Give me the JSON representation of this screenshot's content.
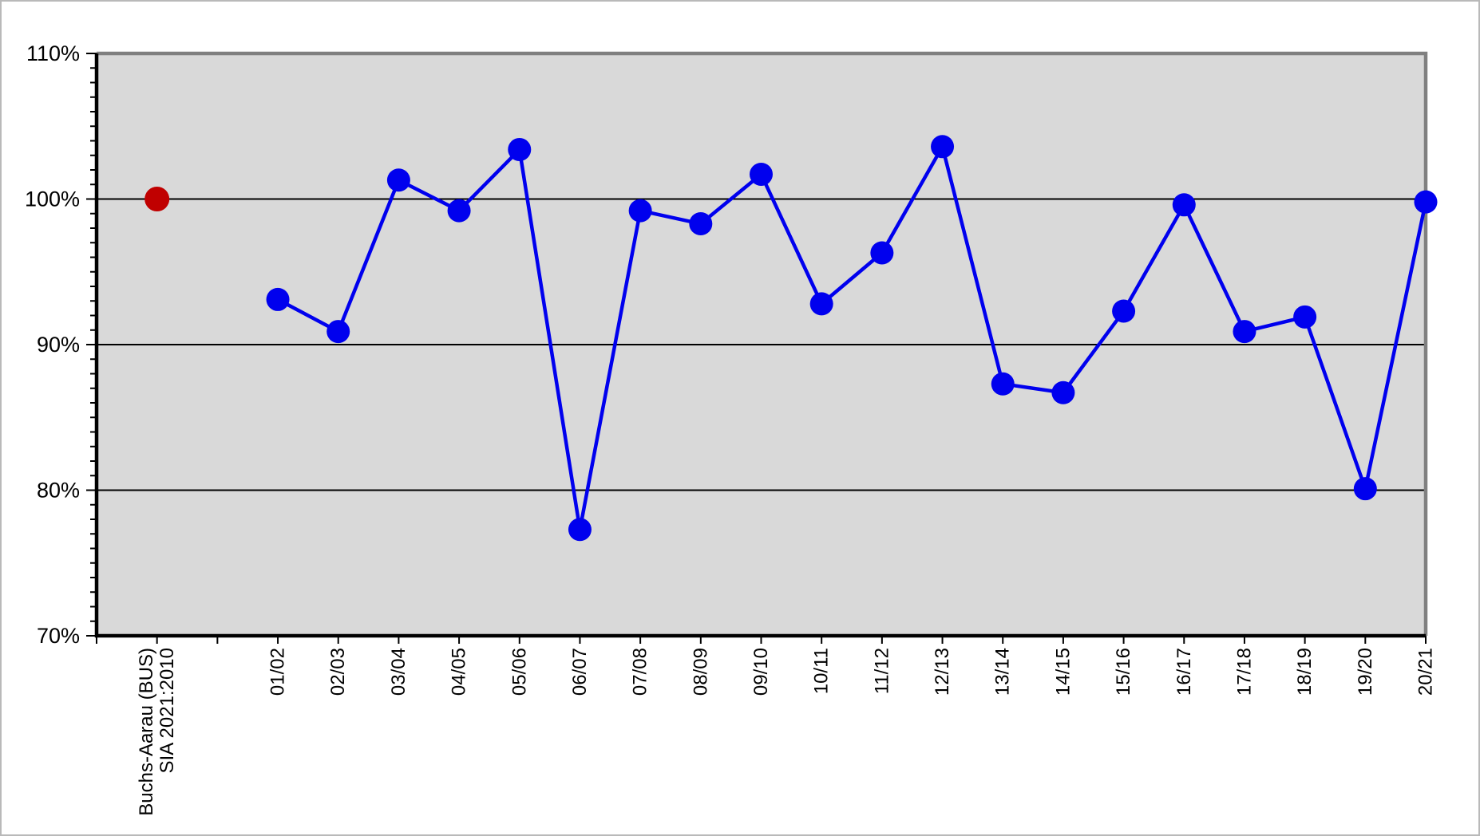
{
  "chart_data": {
    "type": "line",
    "title": "",
    "ylim": [
      70,
      110
    ],
    "y_major_step": 10,
    "y_minor_step": 1,
    "y_tick_labels": [
      "110%",
      "100%",
      "90%",
      "80%",
      "70%"
    ],
    "x_slots": 23,
    "grid": "horizontal-major",
    "legend": "none",
    "colors": {
      "plot_bg": "#D9D9D9",
      "grid": "#000000",
      "axis": "#000000",
      "plot_border": "#808080",
      "series_blue": "#0000EE",
      "reference_red": "#C00000"
    },
    "reference_point": {
      "slot": 1,
      "label_lines": [
        "Buchs-Aarau (BUS)",
        "SIA 2021:2010"
      ],
      "value": 100.0
    },
    "series": [
      {
        "color": "#0000EE",
        "start_slot": 3,
        "categories": [
          "01/02",
          "02/03",
          "03/04",
          "04/05",
          "05/06",
          "06/07",
          "07/08",
          "08/09",
          "09/10",
          "10/11",
          "11/12",
          "12/13",
          "13/14",
          "14/15",
          "15/16",
          "16/17",
          "17/18",
          "18/19",
          "19/20",
          "20/21"
        ],
        "values": [
          93.1,
          90.9,
          101.3,
          99.2,
          103.4,
          77.3,
          99.2,
          98.3,
          101.7,
          92.8,
          96.3,
          103.6,
          87.3,
          86.7,
          92.3,
          99.6,
          90.9,
          91.9,
          80.1,
          99.8
        ]
      }
    ]
  }
}
